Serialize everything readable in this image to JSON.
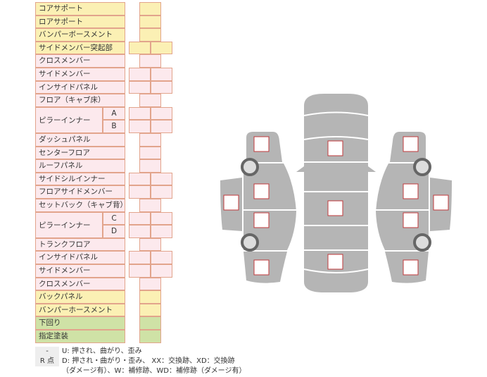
{
  "colors": {
    "yellow": "#fbf0b4",
    "pink": "#fce9ed",
    "green": "#cfe2a6",
    "border": "#e2a48c",
    "car": "#b5b5b5",
    "box_border": "#c0393b"
  },
  "rows": [
    {
      "label": "コアサポート",
      "color": "yellow",
      "cols": 1
    },
    {
      "label": "ロアサポート",
      "color": "yellow",
      "cols": 1
    },
    {
      "label": "バンパーボースメント",
      "color": "yellow",
      "cols": 1
    },
    {
      "label": "サイドメンバー突起部",
      "color": "yellow",
      "cols": 2
    },
    {
      "label": "クロスメンバー",
      "color": "pink",
      "cols": 1
    },
    {
      "label": "サイドメンバー",
      "color": "pink",
      "cols": 2
    },
    {
      "label": "インサイドパネル",
      "color": "pink",
      "cols": 2
    },
    {
      "label": "フロア（キャブ床）",
      "color": "pink",
      "cols": 1
    },
    {
      "label": "ピラーインナー",
      "sub": "A",
      "color": "pink",
      "cols": 2
    },
    {
      "label": "ピラーインナー",
      "sub": "B",
      "color": "pink",
      "cols": 2
    },
    {
      "label": "ダッシュパネル",
      "color": "pink",
      "cols": 1
    },
    {
      "label": "センターフロア",
      "color": "pink",
      "cols": 1
    },
    {
      "label": "ルーフパネル",
      "color": "pink",
      "cols": 1
    },
    {
      "label": "サイドシルインナー",
      "color": "pink",
      "cols": 2
    },
    {
      "label": "フロアサイドメンバー",
      "color": "pink",
      "cols": 2
    },
    {
      "label": "セットバック（キャブ背）",
      "color": "pink",
      "cols": 1
    },
    {
      "label": "ピラーインナー",
      "sub": "C",
      "color": "pink",
      "cols": 2
    },
    {
      "label": "ピラーインナー",
      "sub": "D",
      "color": "pink",
      "cols": 2
    },
    {
      "label": "トランクフロア",
      "color": "pink",
      "cols": 1
    },
    {
      "label": "インサイドパネル",
      "color": "pink",
      "cols": 2
    },
    {
      "label": "サイドメンバー",
      "color": "pink",
      "cols": 2
    },
    {
      "label": "クロスメンバー",
      "color": "pink",
      "cols": 1
    },
    {
      "label": "バックパネル",
      "color": "yellow",
      "cols": 1
    },
    {
      "label": "バンパーホースメント",
      "color": "yellow",
      "cols": 1
    },
    {
      "label": "下回り",
      "color": "green",
      "cols": 1
    },
    {
      "label": "指定塗装",
      "color": "green",
      "cols": 1
    }
  ],
  "legend": [
    {
      "key": "-",
      "text": "U: 押され、曲がり、歪み"
    },
    {
      "key": "R 点",
      "text": "D: 押され・曲がり・歪み、 XX：交換跡、XD：交換跡"
    },
    {
      "key": "",
      "text": "（ダメージ有）、W：補修跡、WD：補修跡（ダメージ有）"
    }
  ]
}
